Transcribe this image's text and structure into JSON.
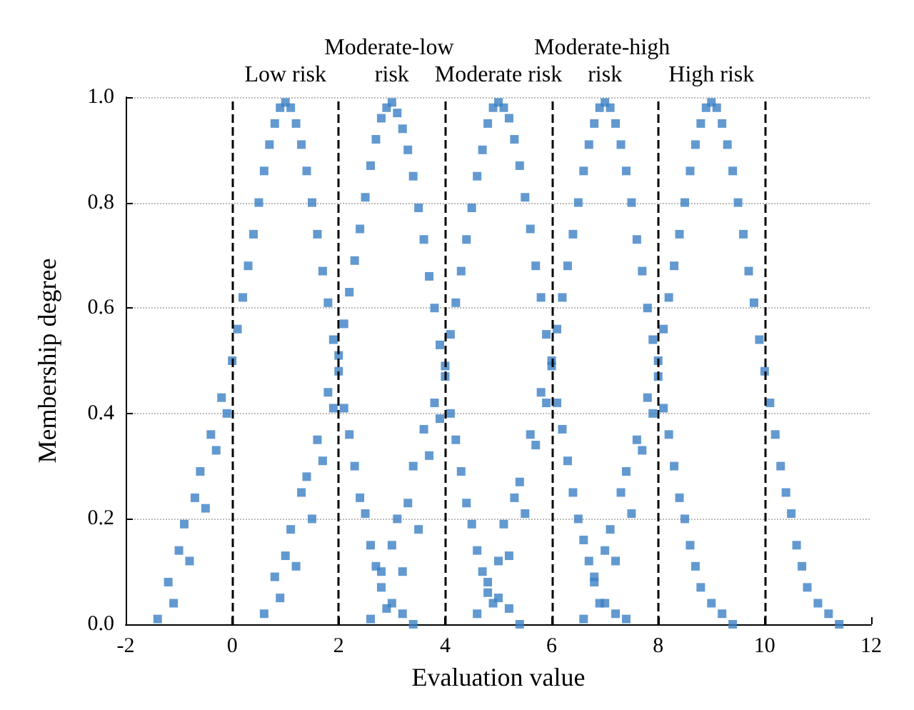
{
  "chart_data": {
    "type": "scatter",
    "xlabel": "Evaluation value",
    "ylabel": "Membership degree",
    "xlim": [
      -2,
      12
    ],
    "xticks": [
      -2,
      0,
      2,
      4,
      6,
      8,
      10,
      12
    ],
    "ylim": [
      0,
      1
    ],
    "yticks": [
      {
        "value": 0,
        "label": "0.0"
      },
      {
        "value": 0.2,
        "label": "0.2"
      },
      {
        "value": 0.4,
        "label": "0.4"
      },
      {
        "value": 0.6,
        "label": "0.6"
      },
      {
        "value": 0.8,
        "label": "0.8"
      },
      {
        "value": 1,
        "label": "1.0"
      }
    ],
    "grid": "y",
    "marker": "square",
    "series": [
      {
        "color": "#3b7fc4",
        "x": [
          -1.4,
          -1.2,
          -1.1,
          -1.0,
          -0.9,
          -0.8,
          -0.7,
          -0.6,
          -0.5,
          -0.4,
          -0.3,
          -0.2,
          -0.1,
          0,
          0.1,
          0.2,
          0.3,
          0.4,
          0.5,
          0.6,
          0.7,
          0.8,
          0.9,
          1.0,
          1.1,
          1.2,
          1.3,
          1.4,
          1.5,
          1.6,
          1.7,
          1.8,
          1.9,
          2.0,
          2.1,
          2.2,
          2.3,
          2.4,
          2.5,
          2.6,
          2.7,
          2.8,
          3.0,
          3.2,
          3.4
        ],
        "values": [
          0.01,
          0.08,
          0.04,
          0.14,
          0.19,
          0.12,
          0.24,
          0.29,
          0.22,
          0.36,
          0.33,
          0.43,
          0.4,
          0.5,
          0.56,
          0.62,
          0.68,
          0.74,
          0.8,
          0.86,
          0.91,
          0.95,
          0.98,
          0.99,
          0.98,
          0.95,
          0.91,
          0.86,
          0.8,
          0.74,
          0.67,
          0.61,
          0.54,
          0.48,
          0.41,
          0.36,
          0.3,
          0.24,
          0.21,
          0.15,
          0.11,
          0.1,
          0.04,
          0.02,
          0.0
        ]
      },
      {
        "color": "#3b7fc4",
        "x": [
          0.6,
          0.8,
          0.9,
          1.0,
          1.1,
          1.2,
          1.3,
          1.4,
          1.5,
          1.6,
          1.7,
          1.8,
          1.9,
          2.0,
          2.1,
          2.2,
          2.3,
          2.4,
          2.5,
          2.6,
          2.7,
          2.8,
          2.9,
          3.0,
          3.1,
          3.2,
          3.3,
          3.4,
          3.5,
          3.6,
          3.7,
          3.8,
          3.9,
          4.0,
          4.1,
          4.2,
          4.3,
          4.4,
          4.5,
          4.6,
          4.7,
          4.8,
          5.0,
          5.2,
          5.4
        ],
        "values": [
          0.02,
          0.09,
          0.05,
          0.13,
          0.18,
          0.11,
          0.25,
          0.28,
          0.2,
          0.35,
          0.31,
          0.44,
          0.41,
          0.51,
          0.57,
          0.63,
          0.69,
          0.75,
          0.81,
          0.87,
          0.92,
          0.96,
          0.98,
          0.99,
          0.97,
          0.94,
          0.9,
          0.85,
          0.79,
          0.73,
          0.66,
          0.6,
          0.53,
          0.47,
          0.4,
          0.35,
          0.29,
          0.23,
          0.19,
          0.14,
          0.1,
          0.06,
          0.05,
          0.03,
          0.0
        ]
      },
      {
        "color": "#3b7fc4",
        "x": [
          2.6,
          2.8,
          2.9,
          3.0,
          3.1,
          3.2,
          3.3,
          3.4,
          3.5,
          3.6,
          3.7,
          3.8,
          3.9,
          4.0,
          4.1,
          4.2,
          4.3,
          4.4,
          4.5,
          4.6,
          4.7,
          4.8,
          4.9,
          5.0,
          5.1,
          5.2,
          5.3,
          5.4,
          5.5,
          5.6,
          5.7,
          5.8,
          5.9,
          6.0,
          6.1,
          6.2,
          6.3,
          6.4,
          6.5,
          6.6,
          6.7,
          6.8,
          7.0,
          7.2,
          7.4
        ],
        "values": [
          0.01,
          0.07,
          0.03,
          0.15,
          0.2,
          0.1,
          0.23,
          0.3,
          0.18,
          0.37,
          0.32,
          0.42,
          0.39,
          0.49,
          0.55,
          0.61,
          0.67,
          0.73,
          0.79,
          0.85,
          0.9,
          0.95,
          0.98,
          0.99,
          0.98,
          0.96,
          0.92,
          0.87,
          0.81,
          0.75,
          0.68,
          0.62,
          0.55,
          0.49,
          0.42,
          0.37,
          0.31,
          0.25,
          0.2,
          0.16,
          0.12,
          0.08,
          0.04,
          0.02,
          0.01
        ]
      },
      {
        "color": "#3b7fc4",
        "x": [
          4.6,
          4.8,
          4.9,
          5.0,
          5.1,
          5.2,
          5.3,
          5.4,
          5.5,
          5.6,
          5.7,
          5.8,
          5.9,
          6.0,
          6.1,
          6.2,
          6.3,
          6.4,
          6.5,
          6.6,
          6.7,
          6.8,
          6.9,
          7.0,
          7.1,
          7.2,
          7.3,
          7.4,
          7.5,
          7.6,
          7.7,
          7.8,
          7.9,
          8.0,
          8.1,
          8.2,
          8.3,
          8.4,
          8.5,
          8.6,
          8.7,
          8.8,
          9.0,
          9.2,
          9.4
        ],
        "values": [
          0.02,
          0.08,
          0.04,
          0.12,
          0.19,
          0.13,
          0.24,
          0.27,
          0.21,
          0.36,
          0.34,
          0.44,
          0.42,
          0.5,
          0.56,
          0.62,
          0.68,
          0.74,
          0.8,
          0.86,
          0.91,
          0.95,
          0.98,
          0.99,
          0.98,
          0.95,
          0.91,
          0.86,
          0.8,
          0.73,
          0.67,
          0.6,
          0.54,
          0.47,
          0.41,
          0.36,
          0.3,
          0.24,
          0.2,
          0.15,
          0.11,
          0.07,
          0.04,
          0.02,
          0.0
        ]
      },
      {
        "color": "#3b7fc4",
        "x": [
          6.6,
          6.8,
          6.9,
          7.0,
          7.1,
          7.2,
          7.3,
          7.4,
          7.5,
          7.6,
          7.7,
          7.8,
          7.9,
          8.0,
          8.1,
          8.2,
          8.3,
          8.4,
          8.5,
          8.6,
          8.7,
          8.8,
          8.9,
          9.0,
          9.1,
          9.2,
          9.3,
          9.4,
          9.5,
          9.6,
          9.7,
          9.8,
          9.9,
          10.0,
          10.1,
          10.2,
          10.3,
          10.4,
          10.5,
          10.6,
          10.7,
          10.8,
          11.0,
          11.2,
          11.4
        ],
        "values": [
          0.01,
          0.09,
          0.04,
          0.14,
          0.18,
          0.12,
          0.25,
          0.29,
          0.21,
          0.35,
          0.33,
          0.43,
          0.4,
          0.5,
          0.56,
          0.62,
          0.68,
          0.74,
          0.8,
          0.86,
          0.91,
          0.95,
          0.98,
          0.99,
          0.98,
          0.95,
          0.91,
          0.86,
          0.8,
          0.74,
          0.67,
          0.61,
          0.54,
          0.48,
          0.42,
          0.36,
          0.3,
          0.25,
          0.21,
          0.15,
          0.11,
          0.07,
          0.04,
          0.02,
          0.0
        ]
      }
    ],
    "ref_lines": [
      {
        "axis": "x",
        "value": 0,
        "color": "#000000",
        "line_style": "dashed"
      },
      {
        "axis": "x",
        "value": 2,
        "color": "#000000",
        "line_style": "dashed"
      },
      {
        "axis": "x",
        "value": 4,
        "color": "#000000",
        "line_style": "dashed"
      },
      {
        "axis": "x",
        "value": 6,
        "color": "#000000",
        "line_style": "dashed"
      },
      {
        "axis": "x",
        "value": 8,
        "color": "#000000",
        "line_style": "dashed"
      },
      {
        "axis": "x",
        "value": 10,
        "color": "#000000",
        "line_style": "dashed"
      }
    ],
    "annotations": [
      {
        "text": "Low risk",
        "x": 1,
        "y": 1
      },
      {
        "text": "Moderate-low risk",
        "x": 3,
        "y": 1
      },
      {
        "text": "Moderate risk",
        "x": 5,
        "y": 1
      },
      {
        "text": "Moderate-high risk",
        "x": 7,
        "y": 1
      },
      {
        "text": "High risk",
        "x": 9,
        "y": 1
      }
    ]
  }
}
